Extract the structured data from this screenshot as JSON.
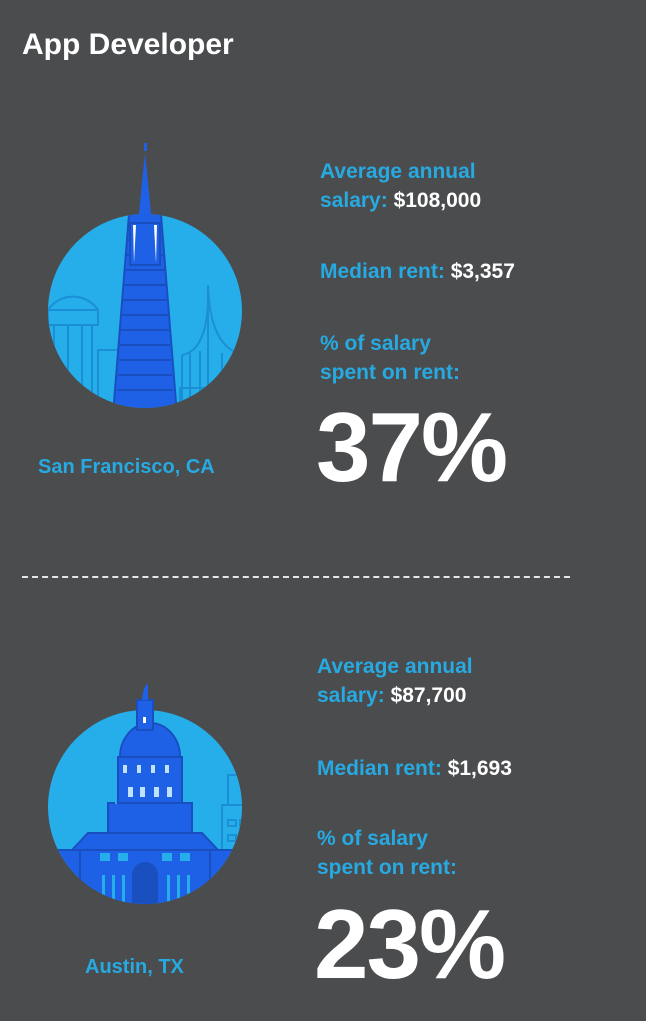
{
  "title": "App Developer",
  "colors": {
    "background": "#4b4c4e",
    "accent": "#27a9e1",
    "circle": "#25aee9",
    "building": "#1e60e6"
  },
  "cities": [
    {
      "name": "San Francisco, CA",
      "icon": "transamerica-pyramid-skyline-icon",
      "salary_label": "Average annual salary:",
      "salary_label_line1": "Average annual",
      "salary_label_line2": "salary:",
      "salary_value": "$108,000",
      "rent_label": "Median rent:",
      "rent_value": "$3,357",
      "pct_label_line1": "% of salary",
      "pct_label_line2": "spent on rent:",
      "pct_value": "37%"
    },
    {
      "name": "Austin, TX",
      "icon": "texas-capitol-skyline-icon",
      "salary_label_line1": "Average annual",
      "salary_label_line2": "salary:",
      "salary_value": "$87,700",
      "rent_label": "Median rent:",
      "rent_value": "$1,693",
      "pct_label_line1": "% of salary",
      "pct_label_line2": "spent on rent:",
      "pct_value": "23%"
    }
  ]
}
